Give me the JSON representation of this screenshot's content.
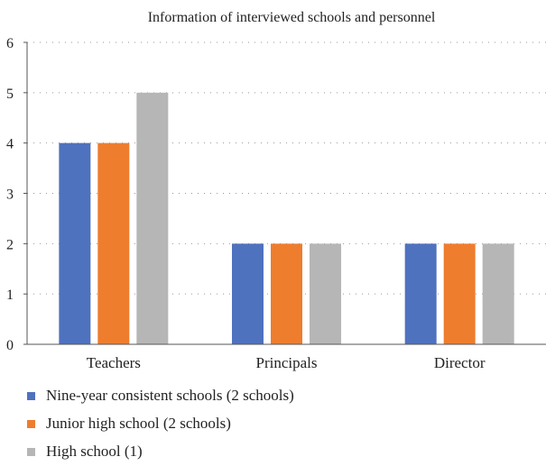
{
  "chart_data": {
    "type": "bar",
    "title": "Information of interviewed schools and personnel",
    "categories": [
      "Teachers",
      "Principals",
      "Director"
    ],
    "series": [
      {
        "name": "Nine-year consistent schools (2 schools)",
        "values": [
          4,
          2,
          2
        ],
        "color": "#4f72be"
      },
      {
        "name": "Junior high school (2 schools)",
        "values": [
          4,
          2,
          2
        ],
        "color": "#ee7d2e"
      },
      {
        "name": "High school (1)",
        "values": [
          5,
          2,
          2
        ],
        "color": "#b6b6b6"
      }
    ],
    "ylim": [
      0,
      6
    ],
    "yticks": [
      "0",
      "1",
      "2",
      "3",
      "4",
      "5",
      "6"
    ],
    "grid": "dotted horizontal",
    "legend_position": "bottom"
  }
}
